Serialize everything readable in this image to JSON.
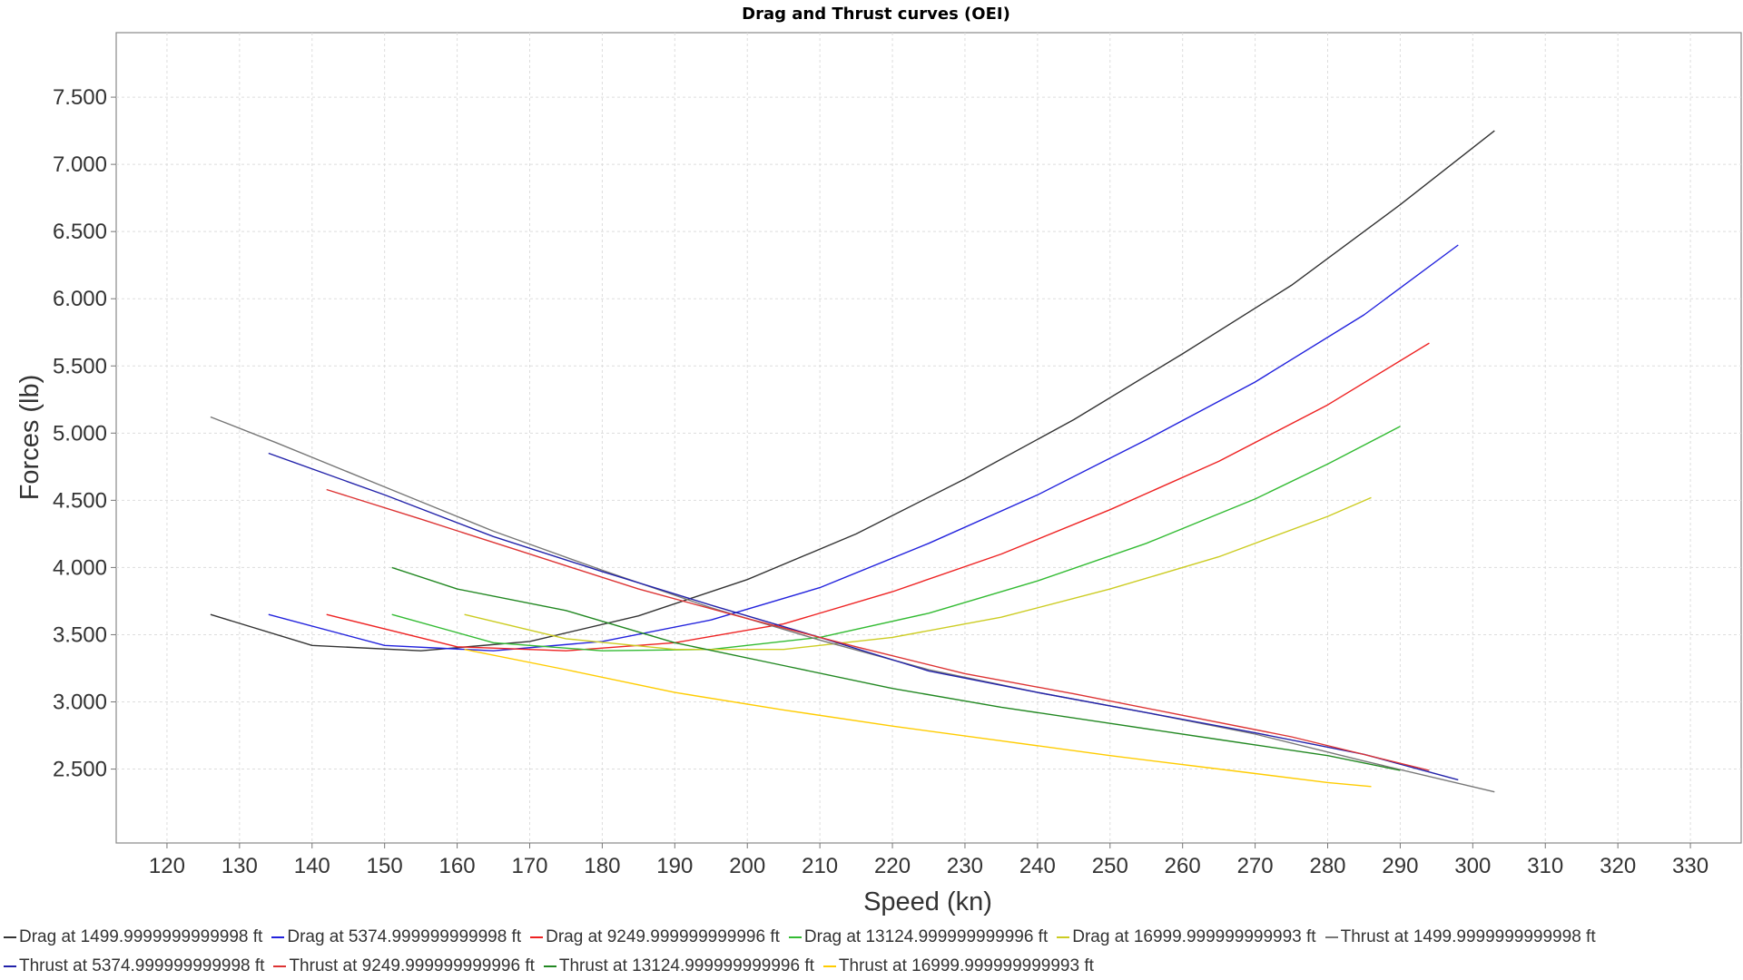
{
  "chart_data": {
    "type": "line",
    "title": "Drag and Thrust curves (OEI)",
    "xlabel": "Speed (kn)",
    "ylabel": "Forces (lb)",
    "xlim": [
      113,
      337
    ],
    "ylim": [
      1950,
      7980
    ],
    "xticks": [
      120,
      130,
      140,
      150,
      160,
      170,
      180,
      190,
      200,
      210,
      220,
      230,
      240,
      250,
      260,
      270,
      280,
      290,
      300,
      310,
      320,
      330
    ],
    "yticks": [
      2500,
      3000,
      3500,
      4000,
      4500,
      5000,
      5500,
      6000,
      6500,
      7000,
      7500
    ],
    "ytick_labels": [
      "2.500",
      "3.000",
      "3.500",
      "4.000",
      "4.500",
      "5.000",
      "5.500",
      "6.000",
      "6.500",
      "7.000",
      "7.500"
    ],
    "grid": true,
    "legend_position": "bottom",
    "series": [
      {
        "name": "Drag at 1499.9999999999998 ft",
        "color": "#333333",
        "x": [
          126,
          140,
          155,
          170,
          185,
          200,
          215,
          230,
          245,
          260,
          275,
          290,
          303
        ],
        "y": [
          3650,
          3420,
          3380,
          3450,
          3640,
          3910,
          4250,
          4660,
          5100,
          5590,
          6100,
          6700,
          7250
        ]
      },
      {
        "name": "Drag at 5374.999999999998 ft",
        "color": "#2222dd",
        "x": [
          134,
          150,
          165,
          180,
          195,
          210,
          225,
          240,
          255,
          270,
          285,
          298
        ],
        "y": [
          3650,
          3420,
          3380,
          3450,
          3610,
          3850,
          4180,
          4540,
          4950,
          5380,
          5880,
          6400
        ]
      },
      {
        "name": "Drag at 9249.999999999996 ft",
        "color": "#ee2222",
        "x": [
          142,
          160,
          175,
          190,
          205,
          220,
          235,
          250,
          265,
          280,
          294
        ],
        "y": [
          3650,
          3410,
          3380,
          3440,
          3580,
          3820,
          4100,
          4430,
          4790,
          5210,
          5670
        ]
      },
      {
        "name": "Drag at 13124.999999999996 ft",
        "color": "#33bb33",
        "x": [
          151,
          165,
          180,
          195,
          210,
          225,
          240,
          255,
          270,
          280,
          290
        ],
        "y": [
          3650,
          3440,
          3380,
          3390,
          3480,
          3660,
          3900,
          4180,
          4510,
          4770,
          5050
        ]
      },
      {
        "name": "Drag at 16999.999999999993 ft",
        "color": "#cccc22",
        "x": [
          161,
          175,
          190,
          205,
          220,
          235,
          250,
          265,
          280,
          286
        ],
        "y": [
          3650,
          3470,
          3390,
          3390,
          3480,
          3630,
          3840,
          4080,
          4380,
          4520
        ]
      },
      {
        "name": "Thrust at 1499.9999999999998 ft",
        "color": "#777777",
        "x": [
          126,
          135,
          150,
          165,
          180,
          195,
          210,
          225,
          240,
          255,
          270,
          285,
          303
        ],
        "y": [
          5120,
          4930,
          4600,
          4270,
          3980,
          3700,
          3460,
          3240,
          3070,
          2920,
          2760,
          2560,
          2330
        ]
      },
      {
        "name": "Thrust at 5374.999999999998 ft",
        "color": "#2222aa",
        "x": [
          134,
          150,
          165,
          180,
          195,
          210,
          225,
          240,
          255,
          270,
          285,
          298
        ],
        "y": [
          4850,
          4540,
          4230,
          3970,
          3720,
          3480,
          3230,
          3070,
          2920,
          2770,
          2610,
          2420
        ]
      },
      {
        "name": "Thrust at 9249.999999999996 ft",
        "color": "#dd3333",
        "x": [
          142,
          155,
          170,
          185,
          200,
          215,
          230,
          245,
          260,
          275,
          294
        ],
        "y": [
          4580,
          4360,
          4100,
          3840,
          3620,
          3410,
          3210,
          3060,
          2900,
          2740,
          2490
        ]
      },
      {
        "name": "Thrust at 13124.999999999996 ft",
        "color": "#228822",
        "x": [
          151,
          160,
          175,
          190,
          205,
          220,
          235,
          250,
          265,
          280,
          290
        ],
        "y": [
          4000,
          3840,
          3680,
          3440,
          3270,
          3100,
          2960,
          2840,
          2720,
          2600,
          2490
        ]
      },
      {
        "name": "Thrust at 16999.999999999993 ft",
        "color": "#ffcc00",
        "x": [
          161,
          175,
          190,
          205,
          220,
          235,
          250,
          265,
          280,
          286
        ],
        "y": [
          3390,
          3240,
          3070,
          2940,
          2820,
          2710,
          2600,
          2500,
          2400,
          2370
        ]
      }
    ]
  }
}
